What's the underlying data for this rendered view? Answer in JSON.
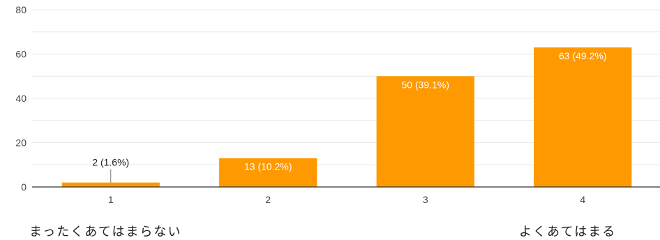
{
  "chart_data": {
    "type": "bar",
    "categories": [
      "1",
      "2",
      "3",
      "4"
    ],
    "values": [
      2,
      13,
      50,
      63
    ],
    "data_labels": [
      "2 (1.6%)",
      "13 (10.2%)",
      "50 (39.1%)",
      "63 (49.2%)"
    ],
    "title": "",
    "xlabel": "",
    "ylabel": "",
    "ylim": [
      0,
      80
    ],
    "yticks": [
      0,
      20,
      40,
      60,
      80
    ],
    "grid": true,
    "legend": "none",
    "bar_color": "#ff9900",
    "grid_color": "#e8e8e8",
    "axis_color": "#333333"
  },
  "scale_captions": {
    "low": "まったくあてはまらない",
    "high": "よくあてはまる"
  }
}
